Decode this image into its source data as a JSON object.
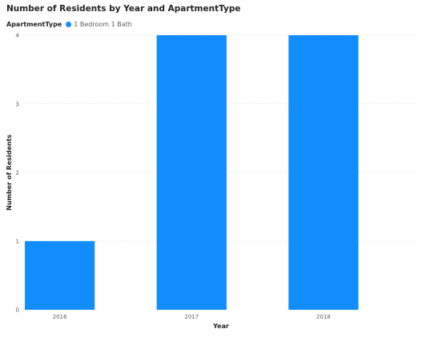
{
  "chart_data": {
    "type": "bar",
    "title": "Number of Residents by Year and ApartmentType",
    "legend": {
      "title": "ApartmentType",
      "placement": "top-left"
    },
    "categories": [
      "2016",
      "2017",
      "2018"
    ],
    "series": [
      {
        "name": "1 Bedroom 1 Bath",
        "color": "#118dff",
        "values": [
          1,
          4,
          4
        ]
      }
    ],
    "xlabel": "Year",
    "ylabel": "Number of Residents",
    "ylim": [
      0,
      4
    ],
    "yticks": [
      "0",
      "1",
      "2",
      "3",
      "4"
    ],
    "grid": true
  }
}
